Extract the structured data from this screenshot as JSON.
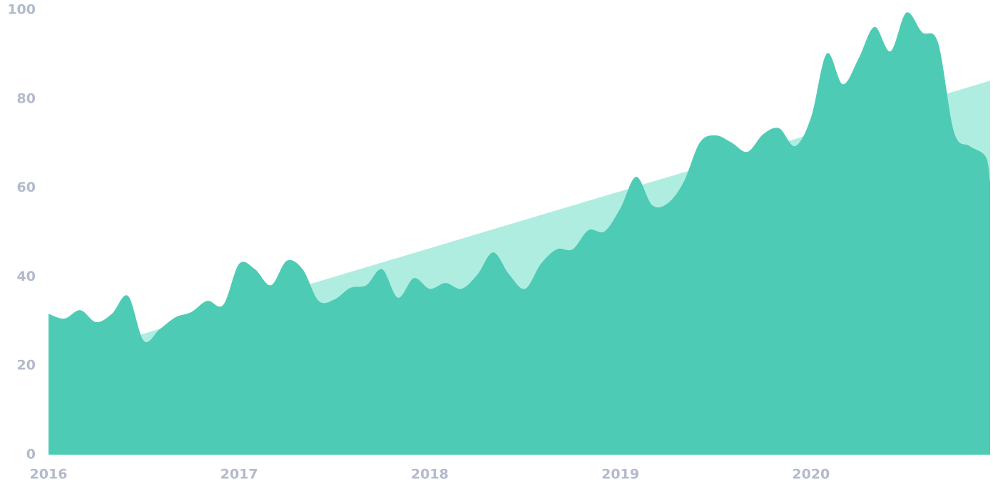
{
  "chart_data": {
    "type": "area",
    "x": [
      2016,
      2016.083,
      2016.167,
      2016.25,
      2016.333,
      2016.417,
      2016.5,
      2016.583,
      2016.667,
      2016.75,
      2016.833,
      2016.917,
      2017,
      2017.083,
      2017.167,
      2017.25,
      2017.333,
      2017.417,
      2017.5,
      2017.583,
      2017.667,
      2017.75,
      2017.833,
      2017.917,
      2018,
      2018.083,
      2018.167,
      2018.25,
      2018.333,
      2018.417,
      2018.5,
      2018.583,
      2018.667,
      2018.75,
      2018.833,
      2018.917,
      2019,
      2019.083,
      2019.167,
      2019.25,
      2019.333,
      2019.417,
      2019.5,
      2019.583,
      2019.667,
      2019.75,
      2019.833,
      2019.917,
      2020,
      2020.083,
      2020.167,
      2020.25,
      2020.333,
      2020.417,
      2020.5,
      2020.583,
      2020.667,
      2020.75,
      2020.833,
      2020.917,
      2020.94
    ],
    "series": [
      {
        "color": "#b0ede1",
        "x": [
          2016,
          2020.94
        ],
        "values": [
          20.8,
          84.1
        ]
      },
      {
        "color": "#4ecbb4",
        "values": [
          31.7,
          30.6,
          32.5,
          29.8,
          31.7,
          35.7,
          25.6,
          28.2,
          30.9,
          32.1,
          34.6,
          33.7,
          42.9,
          41.7,
          38.1,
          43.6,
          41.7,
          34.6,
          34.9,
          37.5,
          38.1,
          41.7,
          35.3,
          39.7,
          37.3,
          38.6,
          37.3,
          40.5,
          45.5,
          40.5,
          37.3,
          42.9,
          46.2,
          46.2,
          50.5,
          50.2,
          55.4,
          62.5,
          56.1,
          56.6,
          61.4,
          70.2,
          71.8,
          70.2,
          68.1,
          72.1,
          73.4,
          69.4,
          75.8,
          90.2,
          83.3,
          89.1,
          96.2,
          90.7,
          99.4,
          95.0,
          92.6,
          72.6,
          69.4,
          67.0,
          61.0
        ]
      }
    ],
    "xlim": [
      2016,
      2020.94
    ],
    "xticks": [
      2016,
      2017,
      2018,
      2019,
      2020
    ],
    "ylim": [
      0,
      100
    ],
    "yticks": [
      0,
      20,
      40,
      60,
      80,
      100
    ]
  }
}
